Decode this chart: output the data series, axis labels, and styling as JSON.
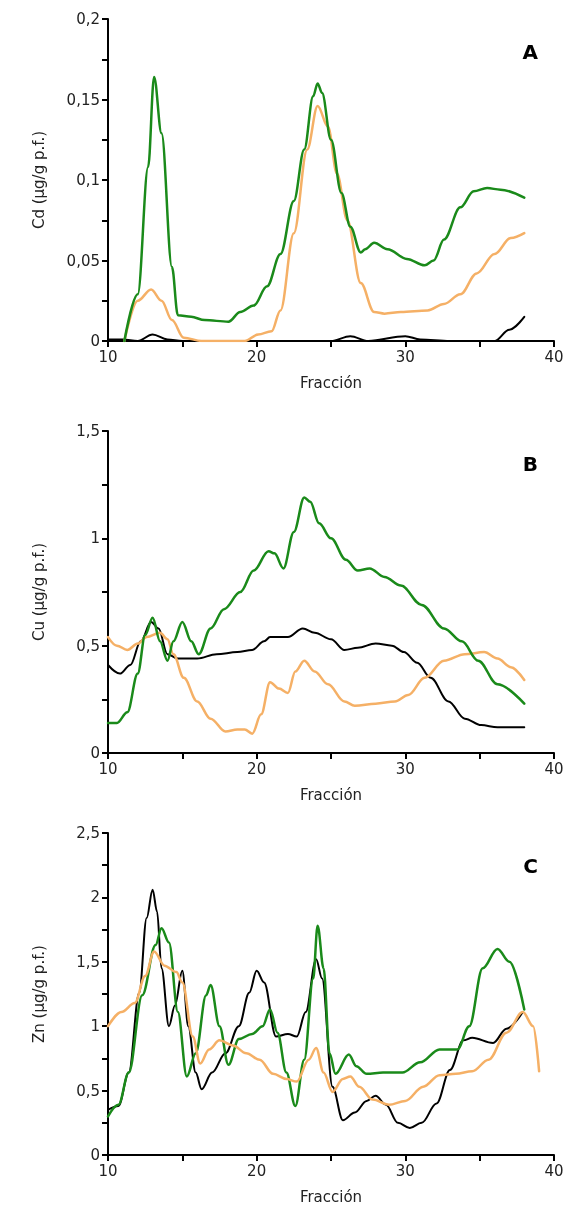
{
  "chart_data": [
    {
      "type": "line",
      "title": "A",
      "xlabel": "Fracción",
      "ylabel": "Cd (µg/g p.f.)",
      "marker": "none",
      "grid": false,
      "xlim": [
        10,
        40
      ],
      "xticks": [
        10,
        {
          "value": 15,
          "label": null
        },
        20,
        {
          "value": 25,
          "label": null
        },
        30,
        {
          "value": 35,
          "label": null
        },
        40
      ],
      "ylim": [
        0,
        0.2
      ],
      "yticks": [
        0,
        {
          "value": 0.025,
          "label": null
        },
        {
          "value": 0.05,
          "label": "0,05"
        },
        {
          "value": 0.075,
          "label": null
        },
        {
          "value": 0.1,
          "label": "0,1"
        },
        {
          "value": 0.125,
          "label": null
        },
        {
          "value": 0.15,
          "label": "0,15"
        },
        {
          "value": 0.175,
          "label": null
        },
        {
          "value": 0.2,
          "label": "0,2"
        }
      ],
      "series": [
        {
          "color": "#000000",
          "x": [
            10,
            11,
            12,
            13,
            14,
            15,
            25,
            26.3,
            27.5,
            30,
            31,
            33,
            36,
            37,
            38
          ],
          "values": [
            0.001,
            0.001,
            0,
            0.004,
            0.001,
            0,
            0,
            0.003,
            0,
            0.003,
            0.001,
            0,
            0,
            0.007,
            0.015
          ]
        },
        {
          "color": "#f5b066",
          "x": [
            11.1,
            12.0,
            12.9,
            13.6,
            14.3,
            15.1,
            16.3,
            18.0,
            19.2,
            20.1,
            21.0,
            21.6,
            22.5,
            23.4,
            24.1,
            24.8,
            25.4,
            26.1,
            27.0,
            27.9,
            28.6,
            29.7,
            31.5,
            32.6,
            33.7,
            34.8,
            36.0,
            37.1,
            38.0
          ],
          "values": [
            0,
            0.025,
            0.032,
            0.025,
            0.013,
            0.002,
            0,
            0,
            0,
            0.004,
            0.006,
            0.019,
            0.067,
            0.119,
            0.146,
            0.133,
            0.104,
            0.075,
            0.036,
            0.018,
            0.017,
            0.018,
            0.019,
            0.023,
            0.029,
            0.042,
            0.054,
            0.064,
            0.067
          ]
        },
        {
          "color": "#1a8a1a",
          "x": [
            11.1,
            12.0,
            12.7,
            13.1,
            13.6,
            14.3,
            14.7,
            15.6,
            16.5,
            18.1,
            18.9,
            19.8,
            20.7,
            21.6,
            22.5,
            23.2,
            23.8,
            24.1,
            24.4,
            25.0,
            25.7,
            26.3,
            27.0,
            27.3,
            27.9,
            28.8,
            30.1,
            31.3,
            31.9,
            32.6,
            33.7,
            34.6,
            35.5,
            36.4,
            38.0
          ],
          "values": [
            0,
            0.029,
            0.108,
            0.164,
            0.129,
            0.046,
            0.016,
            0.015,
            0.013,
            0.012,
            0.018,
            0.022,
            0.034,
            0.054,
            0.087,
            0.119,
            0.152,
            0.16,
            0.154,
            0.125,
            0.092,
            0.071,
            0.055,
            0.057,
            0.061,
            0.057,
            0.051,
            0.047,
            0.05,
            0.063,
            0.083,
            0.093,
            0.095,
            0.094,
            0.089
          ]
        }
      ]
    },
    {
      "type": "line",
      "title": "B",
      "xlabel": "Fracción",
      "ylabel": "Cu (µg/g p.f.)",
      "marker": "none",
      "grid": false,
      "xlim": [
        10,
        40
      ],
      "xticks": [
        10,
        {
          "value": 15,
          "label": null
        },
        20,
        {
          "value": 25,
          "label": null
        },
        30,
        {
          "value": 35,
          "label": null
        },
        40
      ],
      "ylim": [
        0,
        1.5
      ],
      "yticks": [
        0,
        {
          "value": 0.25,
          "label": null
        },
        {
          "value": 0.5,
          "label": "0,5"
        },
        {
          "value": 0.75,
          "label": null
        },
        1,
        {
          "value": 1.25,
          "label": null
        },
        {
          "value": 1.5,
          "label": "1,5"
        }
      ],
      "series": [
        {
          "color": "#000000",
          "x": [
            10.0,
            10.8,
            11.5,
            12.2,
            12.9,
            13.4,
            14.0,
            14.7,
            16.0,
            17.3,
            18.7,
            19.7,
            20.5,
            20.9,
            22.1,
            23.1,
            23.9,
            25.0,
            25.9,
            26.8,
            28.0,
            29.1,
            29.9,
            30.8,
            31.7,
            32.9,
            34.0,
            35.1,
            36.2,
            38.0
          ],
          "values": [
            0.41,
            0.37,
            0.41,
            0.52,
            0.61,
            0.58,
            0.46,
            0.44,
            0.44,
            0.46,
            0.47,
            0.48,
            0.52,
            0.54,
            0.54,
            0.58,
            0.56,
            0.53,
            0.48,
            0.49,
            0.51,
            0.5,
            0.47,
            0.42,
            0.35,
            0.24,
            0.16,
            0.13,
            0.12,
            0.12
          ]
        },
        {
          "color": "#f5b066",
          "x": [
            10.0,
            10.6,
            11.3,
            12.0,
            12.6,
            13.5,
            14.0,
            14.4,
            15.1,
            16.0,
            16.9,
            17.9,
            18.7,
            19.2,
            19.7,
            20.3,
            20.9,
            21.5,
            22.1,
            22.6,
            23.2,
            23.9,
            24.8,
            25.9,
            26.6,
            28.0,
            29.3,
            30.2,
            31.3,
            32.6,
            34.0,
            35.3,
            36.2,
            37.1,
            38.0
          ],
          "values": [
            0.54,
            0.5,
            0.48,
            0.51,
            0.54,
            0.56,
            0.53,
            0.46,
            0.35,
            0.24,
            0.16,
            0.1,
            0.11,
            0.11,
            0.09,
            0.18,
            0.33,
            0.3,
            0.28,
            0.38,
            0.43,
            0.38,
            0.32,
            0.24,
            0.22,
            0.23,
            0.24,
            0.27,
            0.35,
            0.43,
            0.46,
            0.47,
            0.44,
            0.4,
            0.34
          ]
        },
        {
          "color": "#1a8a1a",
          "x": [
            10.0,
            10.6,
            11.3,
            12.0,
            12.5,
            13.0,
            13.5,
            14.0,
            14.4,
            15.0,
            15.6,
            16.1,
            16.9,
            17.8,
            18.9,
            19.8,
            20.8,
            21.2,
            21.8,
            22.5,
            23.2,
            23.6,
            24.2,
            25.0,
            26.0,
            26.8,
            27.6,
            28.6,
            29.7,
            31.1,
            32.6,
            33.8,
            34.9,
            36.2,
            38.0
          ],
          "values": [
            0.14,
            0.14,
            0.19,
            0.37,
            0.55,
            0.63,
            0.52,
            0.43,
            0.52,
            0.61,
            0.52,
            0.46,
            0.58,
            0.67,
            0.75,
            0.85,
            0.94,
            0.93,
            0.86,
            1.03,
            1.19,
            1.17,
            1.07,
            1.0,
            0.9,
            0.85,
            0.86,
            0.82,
            0.78,
            0.69,
            0.58,
            0.52,
            0.43,
            0.32,
            0.23
          ]
        }
      ]
    },
    {
      "type": "line",
      "title": "C",
      "xlabel": "Fracción",
      "ylabel": "Zn (µg/g p.f.)",
      "marker": "none",
      "grid": false,
      "xlim": [
        10,
        40
      ],
      "xticks": [
        10,
        {
          "value": 15,
          "label": null
        },
        20,
        {
          "value": 25,
          "label": null
        },
        30,
        {
          "value": 35,
          "label": null
        },
        40
      ],
      "ylim": [
        0,
        2.5
      ],
      "yticks": [
        0,
        {
          "value": 0.25,
          "label": null
        },
        {
          "value": 0.5,
          "label": "0,5"
        },
        {
          "value": 0.75,
          "label": null
        },
        1,
        {
          "value": 1.25,
          "label": null
        },
        {
          "value": 1.5,
          "label": "1,5"
        },
        {
          "value": 1.75,
          "label": null
        },
        2,
        {
          "value": 2.25,
          "label": null
        },
        {
          "value": 2.5,
          "label": "2,5"
        }
      ],
      "series": [
        {
          "color": "#000000",
          "x": [
            10.0,
            10.7,
            11.4,
            12.1,
            12.6,
            13.0,
            13.3,
            13.6,
            14.1,
            14.5,
            15.0,
            15.4,
            15.9,
            16.3,
            17.0,
            17.9,
            18.8,
            19.5,
            20.0,
            20.5,
            21.3,
            22.1,
            22.7,
            23.3,
            24.0,
            24.4,
            25.1,
            25.8,
            26.6,
            27.4,
            28.0,
            28.7,
            29.5,
            30.3,
            31.1,
            32.1,
            33.0,
            33.9,
            34.5,
            35.9,
            36.8,
            37.9
          ],
          "values": [
            0.35,
            0.38,
            0.64,
            1.26,
            1.84,
            2.06,
            1.89,
            1.45,
            1.0,
            1.16,
            1.43,
            1.0,
            0.64,
            0.51,
            0.64,
            0.79,
            1.0,
            1.26,
            1.43,
            1.34,
            0.92,
            0.94,
            0.92,
            1.11,
            1.52,
            1.37,
            0.53,
            0.27,
            0.33,
            0.42,
            0.46,
            0.39,
            0.25,
            0.21,
            0.25,
            0.4,
            0.66,
            0.89,
            0.91,
            0.87,
            0.98,
            1.11
          ]
        },
        {
          "color": "#1a8a1a",
          "x": [
            10.0,
            10.7,
            11.4,
            12.3,
            13.2,
            13.6,
            14.1,
            14.7,
            15.3,
            15.9,
            16.6,
            16.9,
            17.5,
            18.1,
            18.8,
            19.7,
            20.4,
            20.9,
            21.4,
            22.0,
            22.6,
            23.2,
            23.8,
            24.1,
            24.5,
            24.9,
            25.3,
            26.2,
            26.7,
            27.4,
            28.5,
            29.8,
            31.0,
            32.3,
            33.5,
            34.3,
            35.2,
            36.2,
            37.0,
            38.0
          ],
          "values": [
            0.3,
            0.39,
            0.64,
            1.24,
            1.63,
            1.76,
            1.65,
            1.11,
            0.61,
            0.79,
            1.24,
            1.32,
            1.0,
            0.7,
            0.9,
            0.94,
            1.0,
            1.13,
            0.95,
            0.64,
            0.38,
            0.74,
            1.37,
            1.78,
            1.45,
            0.79,
            0.63,
            0.78,
            0.69,
            0.63,
            0.64,
            0.64,
            0.72,
            0.82,
            0.82,
            1.0,
            1.45,
            1.6,
            1.5,
            1.13
          ]
        },
        {
          "color": "#f5b066",
          "x": [
            10.0,
            10.9,
            11.8,
            12.5,
            13.1,
            13.8,
            14.6,
            15.0,
            15.7,
            16.2,
            16.8,
            17.5,
            18.4,
            19.3,
            20.2,
            21.1,
            22.0,
            22.7,
            23.5,
            24.0,
            24.5,
            25.1,
            25.8,
            26.3,
            26.9,
            27.8,
            28.9,
            30.0,
            31.2,
            32.3,
            33.4,
            34.5,
            35.6,
            36.8,
            37.9,
            38.6,
            39.0
          ],
          "values": [
            1.0,
            1.11,
            1.18,
            1.39,
            1.58,
            1.47,
            1.42,
            1.34,
            0.92,
            0.71,
            0.82,
            0.89,
            0.85,
            0.79,
            0.74,
            0.63,
            0.59,
            0.57,
            0.74,
            0.83,
            0.64,
            0.49,
            0.59,
            0.61,
            0.53,
            0.43,
            0.39,
            0.42,
            0.53,
            0.62,
            0.63,
            0.65,
            0.74,
            0.95,
            1.11,
            1.0,
            0.65
          ]
        }
      ]
    }
  ]
}
